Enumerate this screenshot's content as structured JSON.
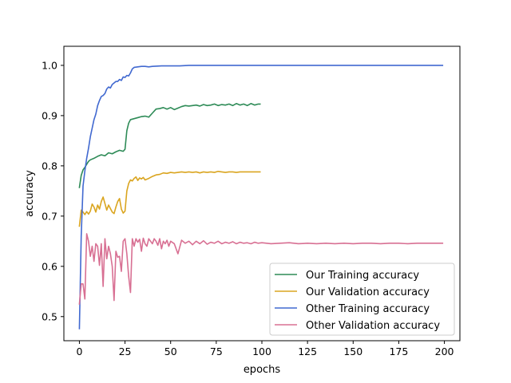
{
  "chart_data": {
    "type": "line",
    "xlabel": "epochs",
    "ylabel": "accuracy",
    "xlim": [
      -8.5,
      208.5
    ],
    "ylim": [
      0.452,
      1.038
    ],
    "xticks": [
      0,
      25,
      50,
      75,
      100,
      125,
      150,
      175,
      200
    ],
    "yticks": [
      0.5,
      0.6,
      0.7,
      0.8,
      0.9,
      1.0
    ],
    "ytick_labels": [
      "0.5",
      "0.6",
      "0.7",
      "0.8",
      "0.9",
      "1.0"
    ],
    "grid": false,
    "legend_position": "lower-right",
    "series": [
      {
        "name": "Our Training accuracy",
        "color": "#2e8b57",
        "x": [
          0,
          1,
          2,
          3,
          4,
          5,
          6,
          8,
          10,
          12,
          14,
          16,
          18,
          20,
          22,
          24,
          25,
          26,
          27,
          28,
          30,
          32,
          34,
          36,
          38,
          40,
          42,
          44,
          46,
          48,
          50,
          52,
          54,
          56,
          58,
          60,
          62,
          64,
          66,
          68,
          70,
          72,
          74,
          76,
          78,
          80,
          82,
          84,
          86,
          88,
          90,
          92,
          94,
          96,
          98,
          99
        ],
        "y": [
          0.757,
          0.781,
          0.792,
          0.797,
          0.803,
          0.809,
          0.812,
          0.815,
          0.819,
          0.822,
          0.82,
          0.826,
          0.824,
          0.828,
          0.831,
          0.829,
          0.833,
          0.87,
          0.885,
          0.892,
          0.894,
          0.896,
          0.898,
          0.899,
          0.897,
          0.905,
          0.913,
          0.914,
          0.916,
          0.913,
          0.916,
          0.912,
          0.915,
          0.918,
          0.92,
          0.919,
          0.92,
          0.921,
          0.919,
          0.922,
          0.92,
          0.921,
          0.923,
          0.92,
          0.922,
          0.921,
          0.923,
          0.92,
          0.924,
          0.921,
          0.923,
          0.92,
          0.924,
          0.921,
          0.923,
          0.923
        ]
      },
      {
        "name": "Our Validation accuracy",
        "color": "#daa520",
        "x": [
          0,
          1,
          2,
          3,
          4,
          5,
          6,
          7,
          8,
          9,
          10,
          11,
          12,
          13,
          14,
          15,
          16,
          17,
          18,
          19,
          20,
          21,
          22,
          23,
          24,
          25,
          26,
          27,
          28,
          29,
          30,
          31,
          32,
          33,
          34,
          35,
          36,
          38,
          40,
          42,
          44,
          46,
          48,
          50,
          52,
          54,
          56,
          58,
          60,
          62,
          64,
          66,
          68,
          70,
          72,
          74,
          76,
          78,
          80,
          82,
          84,
          86,
          88,
          90,
          92,
          94,
          96,
          98,
          99
        ],
        "y": [
          0.68,
          0.712,
          0.708,
          0.703,
          0.709,
          0.704,
          0.71,
          0.724,
          0.718,
          0.708,
          0.722,
          0.714,
          0.729,
          0.738,
          0.725,
          0.712,
          0.722,
          0.715,
          0.708,
          0.705,
          0.718,
          0.729,
          0.735,
          0.714,
          0.706,
          0.71,
          0.75,
          0.765,
          0.772,
          0.77,
          0.775,
          0.778,
          0.771,
          0.776,
          0.774,
          0.777,
          0.772,
          0.775,
          0.779,
          0.782,
          0.783,
          0.786,
          0.785,
          0.787,
          0.786,
          0.787,
          0.788,
          0.787,
          0.788,
          0.787,
          0.788,
          0.786,
          0.788,
          0.787,
          0.788,
          0.787,
          0.789,
          0.788,
          0.787,
          0.788,
          0.788,
          0.787,
          0.788,
          0.788,
          0.788,
          0.788,
          0.788,
          0.788,
          0.788
        ]
      },
      {
        "name": "Other Training accuracy",
        "color": "#4169d0",
        "x": [
          0,
          1,
          2,
          3,
          4,
          5,
          6,
          7,
          8,
          9,
          10,
          11,
          12,
          13,
          14,
          15,
          16,
          17,
          18,
          19,
          20,
          21,
          22,
          23,
          24,
          25,
          26,
          27,
          28,
          29,
          30,
          32,
          34,
          36,
          38,
          40,
          45,
          50,
          55,
          60,
          70,
          80,
          100,
          150,
          199
        ],
        "y": [
          0.476,
          0.66,
          0.76,
          0.79,
          0.815,
          0.835,
          0.858,
          0.875,
          0.892,
          0.903,
          0.92,
          0.93,
          0.938,
          0.94,
          0.944,
          0.953,
          0.957,
          0.955,
          0.962,
          0.965,
          0.968,
          0.968,
          0.972,
          0.97,
          0.977,
          0.976,
          0.98,
          0.979,
          0.985,
          0.993,
          0.996,
          0.997,
          0.998,
          0.998,
          0.997,
          0.998,
          0.999,
          0.999,
          0.999,
          1.0,
          1.0,
          1.0,
          1.0,
          1.0,
          1.0
        ]
      },
      {
        "name": "Other Validation accuracy",
        "color": "#d87093",
        "x": [
          0,
          1,
          2,
          3,
          4,
          5,
          6,
          7,
          8,
          9,
          10,
          11,
          12,
          13,
          14,
          15,
          16,
          17,
          18,
          19,
          20,
          21,
          22,
          23,
          24,
          25,
          26,
          27,
          28,
          29,
          30,
          31,
          32,
          33,
          34,
          35,
          36,
          37,
          38,
          39,
          40,
          41,
          42,
          43,
          44,
          45,
          46,
          47,
          48,
          49,
          50,
          52,
          54,
          56,
          58,
          60,
          62,
          64,
          66,
          68,
          70,
          72,
          74,
          76,
          78,
          80,
          82,
          84,
          86,
          88,
          90,
          92,
          94,
          96,
          98,
          100,
          105,
          110,
          115,
          120,
          125,
          130,
          135,
          140,
          145,
          150,
          155,
          160,
          165,
          170,
          175,
          180,
          185,
          190,
          195,
          199
        ],
        "y": [
          0.525,
          0.565,
          0.565,
          0.535,
          0.665,
          0.65,
          0.62,
          0.64,
          0.61,
          0.645,
          0.64,
          0.602,
          0.645,
          0.56,
          0.655,
          0.615,
          0.64,
          0.625,
          0.6,
          0.532,
          0.63,
          0.618,
          0.62,
          0.59,
          0.65,
          0.655,
          0.625,
          0.58,
          0.548,
          0.655,
          0.64,
          0.655,
          0.648,
          0.654,
          0.63,
          0.656,
          0.645,
          0.64,
          0.655,
          0.65,
          0.645,
          0.655,
          0.65,
          0.642,
          0.655,
          0.635,
          0.65,
          0.645,
          0.652,
          0.64,
          0.65,
          0.645,
          0.625,
          0.652,
          0.646,
          0.65,
          0.643,
          0.65,
          0.645,
          0.651,
          0.644,
          0.648,
          0.646,
          0.65,
          0.645,
          0.648,
          0.646,
          0.649,
          0.645,
          0.648,
          0.646,
          0.647,
          0.645,
          0.648,
          0.646,
          0.647,
          0.645,
          0.646,
          0.647,
          0.645,
          0.646,
          0.645,
          0.646,
          0.645,
          0.646,
          0.645,
          0.646,
          0.646,
          0.645,
          0.646,
          0.646,
          0.645,
          0.646,
          0.646,
          0.646,
          0.646
        ]
      }
    ]
  }
}
